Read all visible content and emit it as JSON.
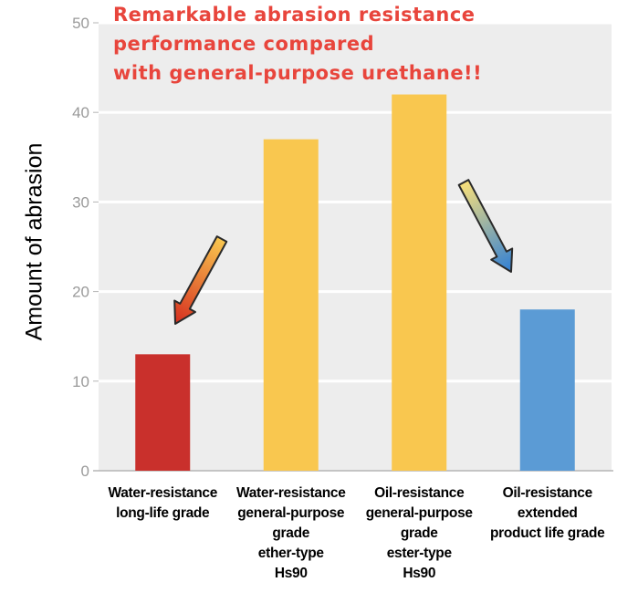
{
  "chart_data": {
    "type": "bar",
    "title_lines": [
      "Remarkable abrasion resistance",
      "performance compared",
      "with general-purpose urethane!!"
    ],
    "ylabel": "Amount of abrasion",
    "xlabel": "",
    "ylim": [
      0,
      50
    ],
    "yticks": [
      "0",
      "10",
      "20",
      "30",
      "40",
      "50"
    ],
    "grid": true,
    "categories": [
      [
        "Water-resistance",
        "long-life grade"
      ],
      [
        "Water-resistance",
        "general-purpose",
        "grade",
        "ether-type",
        "Hs90"
      ],
      [
        "Oil-resistance",
        "general-purpose",
        "grade",
        "ester-type",
        "Hs90"
      ],
      [
        "Oil-resistance",
        "extended",
        "product life grade"
      ]
    ],
    "values": [
      13,
      37,
      42,
      18
    ],
    "bar_colors": [
      "#c9302c",
      "#f9c74f",
      "#f9c74f",
      "#5b9bd5"
    ],
    "annotations": [
      {
        "type": "arrow",
        "points_to_category": 0,
        "gradient": [
          "#f9c74f",
          "#d62e1f"
        ]
      },
      {
        "type": "arrow",
        "points_to_category": 3,
        "gradient": [
          "#f9e07a",
          "#2f7fd6"
        ]
      }
    ]
  }
}
